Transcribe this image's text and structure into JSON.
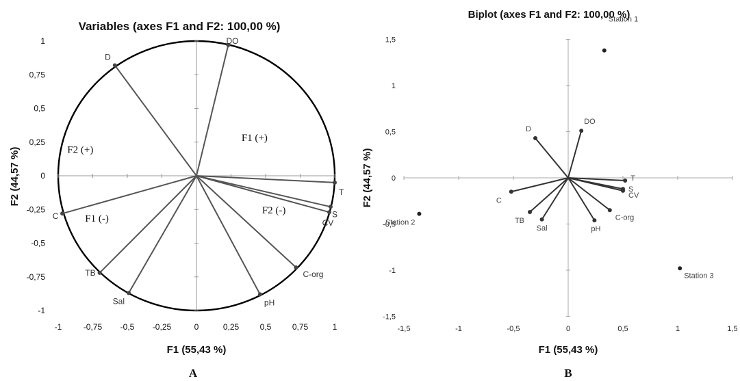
{
  "chart_data": [
    {
      "type": "scatter",
      "panel": "A",
      "title": "Variables (axes F1 and F2: 100,00 %)",
      "xlabel": "F1 (55,43 %)",
      "ylabel": "F2 (44,57 %)",
      "xlim": [
        -1,
        1
      ],
      "ylim": [
        -1,
        1
      ],
      "xticks": [
        "-1",
        "-0,75",
        "-0,5",
        "-0,25",
        "0",
        "0,25",
        "0,5",
        "0,75",
        "1"
      ],
      "yticks": [
        "-1",
        "-0,75",
        "-0,5",
        "-0,25",
        "0",
        "0,25",
        "0,5",
        "0,75",
        "1"
      ],
      "correlation_circle": true,
      "vectors": [
        {
          "label": "DO",
          "x": 0.23,
          "y": 0.97
        },
        {
          "label": "D",
          "x": -0.59,
          "y": 0.82
        },
        {
          "label": "T",
          "x": 1.0,
          "y": -0.05
        },
        {
          "label": "S",
          "x": 0.97,
          "y": -0.23
        },
        {
          "label": "CV",
          "x": 0.96,
          "y": -0.27
        },
        {
          "label": "C-org",
          "x": 0.72,
          "y": -0.68
        },
        {
          "label": "pH",
          "x": 0.46,
          "y": -0.88
        },
        {
          "label": "Sal",
          "x": -0.49,
          "y": -0.87
        },
        {
          "label": "TB",
          "x": -0.7,
          "y": -0.72
        },
        {
          "label": "C",
          "x": -0.97,
          "y": -0.28
        }
      ],
      "region_labels": [
        {
          "text": "F1 (+)",
          "x": 0.42,
          "y": 0.26
        },
        {
          "text": "F2 (+)",
          "x": -0.84,
          "y": 0.17
        },
        {
          "text": "F1 (-)",
          "x": -0.72,
          "y": -0.34
        },
        {
          "text": "F2 (-)",
          "x": 0.56,
          "y": -0.28
        }
      ],
      "panel_label": "A"
    },
    {
      "type": "scatter",
      "panel": "B",
      "title": "Biplot (axes F1 and F2: 100,00 %)",
      "xlabel": "F1 (55,43 %)",
      "ylabel": "F2 (44,57 %)",
      "xlim": [
        -1.5,
        1.5
      ],
      "ylim": [
        -1.5,
        1.5
      ],
      "xticks": [
        "-1,5",
        "-1",
        "-0,5",
        "0",
        "0,5",
        "1",
        "1,5"
      ],
      "yticks": [
        "-1,5",
        "-1",
        "-0,5",
        "0",
        "0,5",
        "1",
        "1,5"
      ],
      "vectors": [
        {
          "label": "DO",
          "x": 0.12,
          "y": 0.51
        },
        {
          "label": "D",
          "x": -0.3,
          "y": 0.43
        },
        {
          "label": "T",
          "x": 0.52,
          "y": -0.03
        },
        {
          "label": "S",
          "x": 0.5,
          "y": -0.12
        },
        {
          "label": "CV",
          "x": 0.5,
          "y": -0.14
        },
        {
          "label": "C-org",
          "x": 0.38,
          "y": -0.35
        },
        {
          "label": "pH",
          "x": 0.24,
          "y": -0.46
        },
        {
          "label": "Sal",
          "x": -0.24,
          "y": -0.45
        },
        {
          "label": "TB",
          "x": -0.35,
          "y": -0.37
        },
        {
          "label": "C",
          "x": -0.52,
          "y": -0.15
        }
      ],
      "observations": [
        {
          "label": "Station 1",
          "x": 0.33,
          "y": 1.38
        },
        {
          "label": "Station 2",
          "x": -1.36,
          "y": -0.39
        },
        {
          "label": "Station 3",
          "x": 1.02,
          "y": -0.98
        }
      ],
      "panel_label": "B"
    }
  ]
}
